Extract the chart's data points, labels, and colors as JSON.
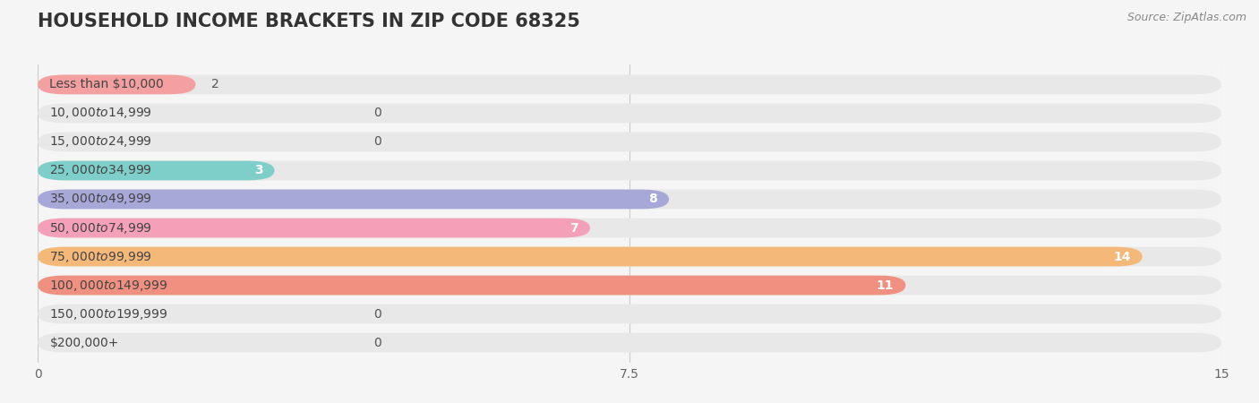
{
  "title": "HOUSEHOLD INCOME BRACKETS IN ZIP CODE 68325",
  "source": "Source: ZipAtlas.com",
  "categories": [
    "Less than $10,000",
    "$10,000 to $14,999",
    "$15,000 to $24,999",
    "$25,000 to $34,999",
    "$35,000 to $49,999",
    "$50,000 to $74,999",
    "$75,000 to $99,999",
    "$100,000 to $149,999",
    "$150,000 to $199,999",
    "$200,000+"
  ],
  "values": [
    2,
    0,
    0,
    3,
    8,
    7,
    14,
    11,
    0,
    0
  ],
  "colors": [
    "#F4A0A0",
    "#A8C4E0",
    "#C8A8D8",
    "#7ECECA",
    "#A8A8D8",
    "#F4A0B8",
    "#F4B878",
    "#F09080",
    "#A8C4E0",
    "#D4B8D8"
  ],
  "xlim": [
    0,
    15
  ],
  "xticks": [
    0,
    7.5,
    15
  ],
  "background_color": "#f0f0f0",
  "bar_bg_color": "#e8e8e8",
  "title_fontsize": 15,
  "label_fontsize": 10,
  "value_fontsize": 10
}
